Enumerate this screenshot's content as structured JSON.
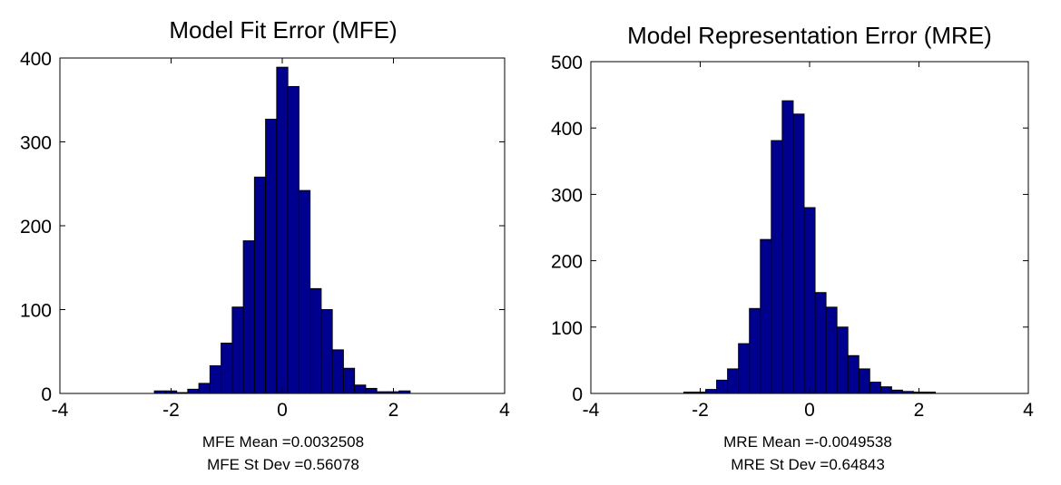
{
  "colors": {
    "bar_fill": "#00008f",
    "bar_edge": "#000000",
    "axes": "#000000",
    "background": "#ffffff"
  },
  "chart_data": [
    {
      "type": "bar",
      "title": "Model Fit Error (MFE)",
      "xlabel": "",
      "ylabel": "",
      "xlim": [
        -4,
        4
      ],
      "ylim": [
        0,
        400
      ],
      "xticks": [
        -4,
        -2,
        0,
        2,
        4
      ],
      "yticks": [
        0,
        100,
        200,
        300,
        400
      ],
      "grid": false,
      "bin_width": 0.2,
      "x": [
        -2.2,
        -2.0,
        -1.8,
        -1.6,
        -1.4,
        -1.2,
        -1.0,
        -0.8,
        -0.6,
        -0.4,
        -0.2,
        0.0,
        0.2,
        0.4,
        0.6,
        0.8,
        1.0,
        1.2,
        1.4,
        1.6,
        1.8,
        2.0,
        2.2
      ],
      "values": [
        3,
        3,
        1,
        5,
        12,
        33,
        60,
        103,
        182,
        258,
        327,
        389,
        366,
        242,
        125,
        100,
        52,
        30,
        10,
        6,
        2,
        2,
        3
      ],
      "annotations": [
        "MFE Mean =0.0032508",
        "MFE St Dev =0.56078"
      ]
    },
    {
      "type": "bar",
      "title": "Model Representation Error (MRE)",
      "xlabel": "",
      "ylabel": "",
      "xlim": [
        -4,
        4
      ],
      "ylim": [
        0,
        500
      ],
      "xticks": [
        -4,
        -2,
        0,
        2,
        4
      ],
      "yticks": [
        0,
        100,
        200,
        300,
        400,
        500
      ],
      "grid": false,
      "bin_width": 0.2,
      "x": [
        -2.2,
        -2.0,
        -1.8,
        -1.6,
        -1.4,
        -1.2,
        -1.0,
        -0.8,
        -0.6,
        -0.4,
        -0.2,
        0.0,
        0.2,
        0.4,
        0.6,
        0.8,
        1.0,
        1.2,
        1.4,
        1.6,
        1.8,
        2.0,
        2.2
      ],
      "values": [
        2,
        2,
        6,
        20,
        37,
        75,
        128,
        232,
        381,
        441,
        421,
        280,
        152,
        130,
        100,
        57,
        37,
        17,
        10,
        5,
        3,
        2,
        2
      ],
      "annotations": [
        "MRE Mean =-0.0049538",
        "MRE St Dev =0.64843"
      ]
    }
  ]
}
